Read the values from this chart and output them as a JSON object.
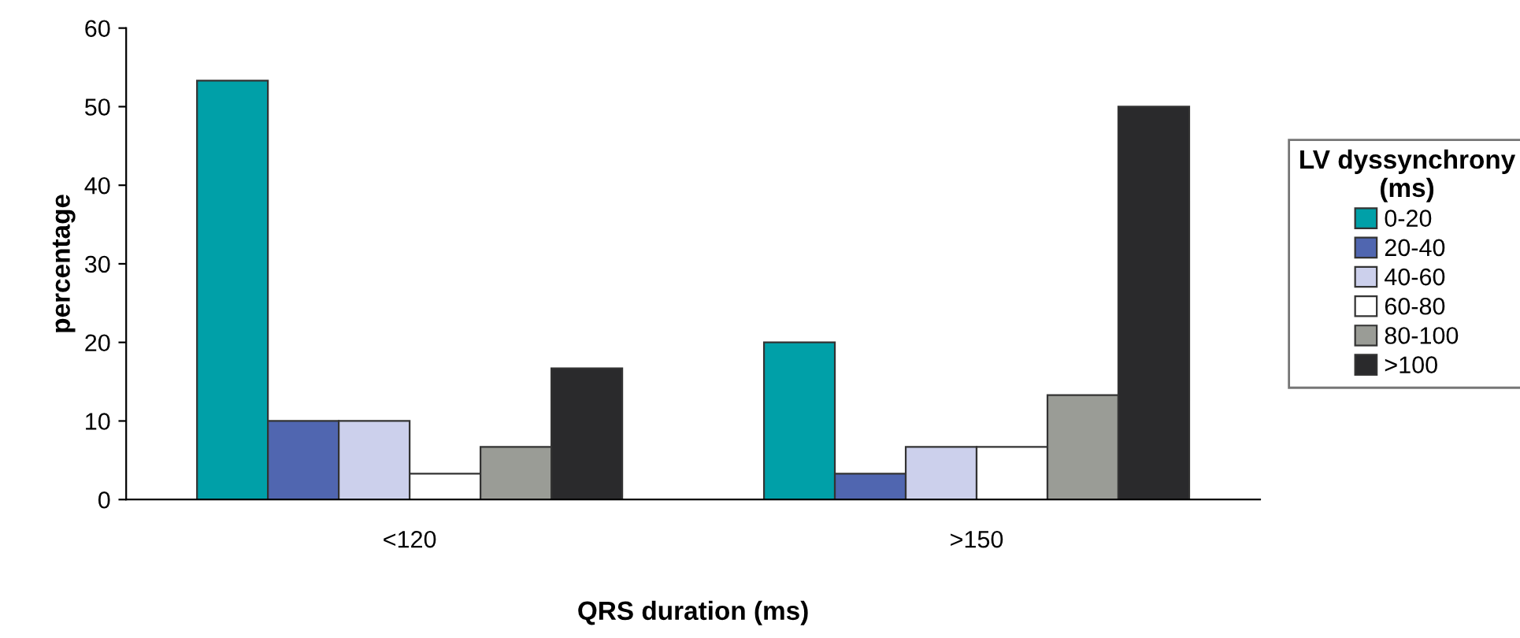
{
  "chart_data": {
    "type": "bar",
    "xlabel": "QRS duration (ms)",
    "ylabel": "percentage",
    "legend_title": "LV dyssynchrony\n(ms)",
    "categories": [
      "<120",
      ">150"
    ],
    "series": [
      {
        "name": "0-20",
        "color": "#00a0a8",
        "values": [
          53.3,
          20
        ]
      },
      {
        "name": "20-40",
        "color": "#5066b0",
        "values": [
          10,
          3.3
        ]
      },
      {
        "name": "40-60",
        "color": "#ccd0ec",
        "values": [
          10,
          6.7
        ]
      },
      {
        "name": "60-80",
        "color": "#ffffff",
        "values": [
          3.3,
          6.7
        ]
      },
      {
        "name": "80-100",
        "color": "#9a9c96",
        "values": [
          6.7,
          13.3
        ]
      },
      {
        "name": ">100",
        "color": "#2a2a2c",
        "values": [
          16.7,
          50
        ]
      }
    ],
    "ylim": [
      0,
      60
    ],
    "yticks": [
      0,
      10,
      20,
      30,
      40,
      50,
      60
    ],
    "legend": "right"
  }
}
